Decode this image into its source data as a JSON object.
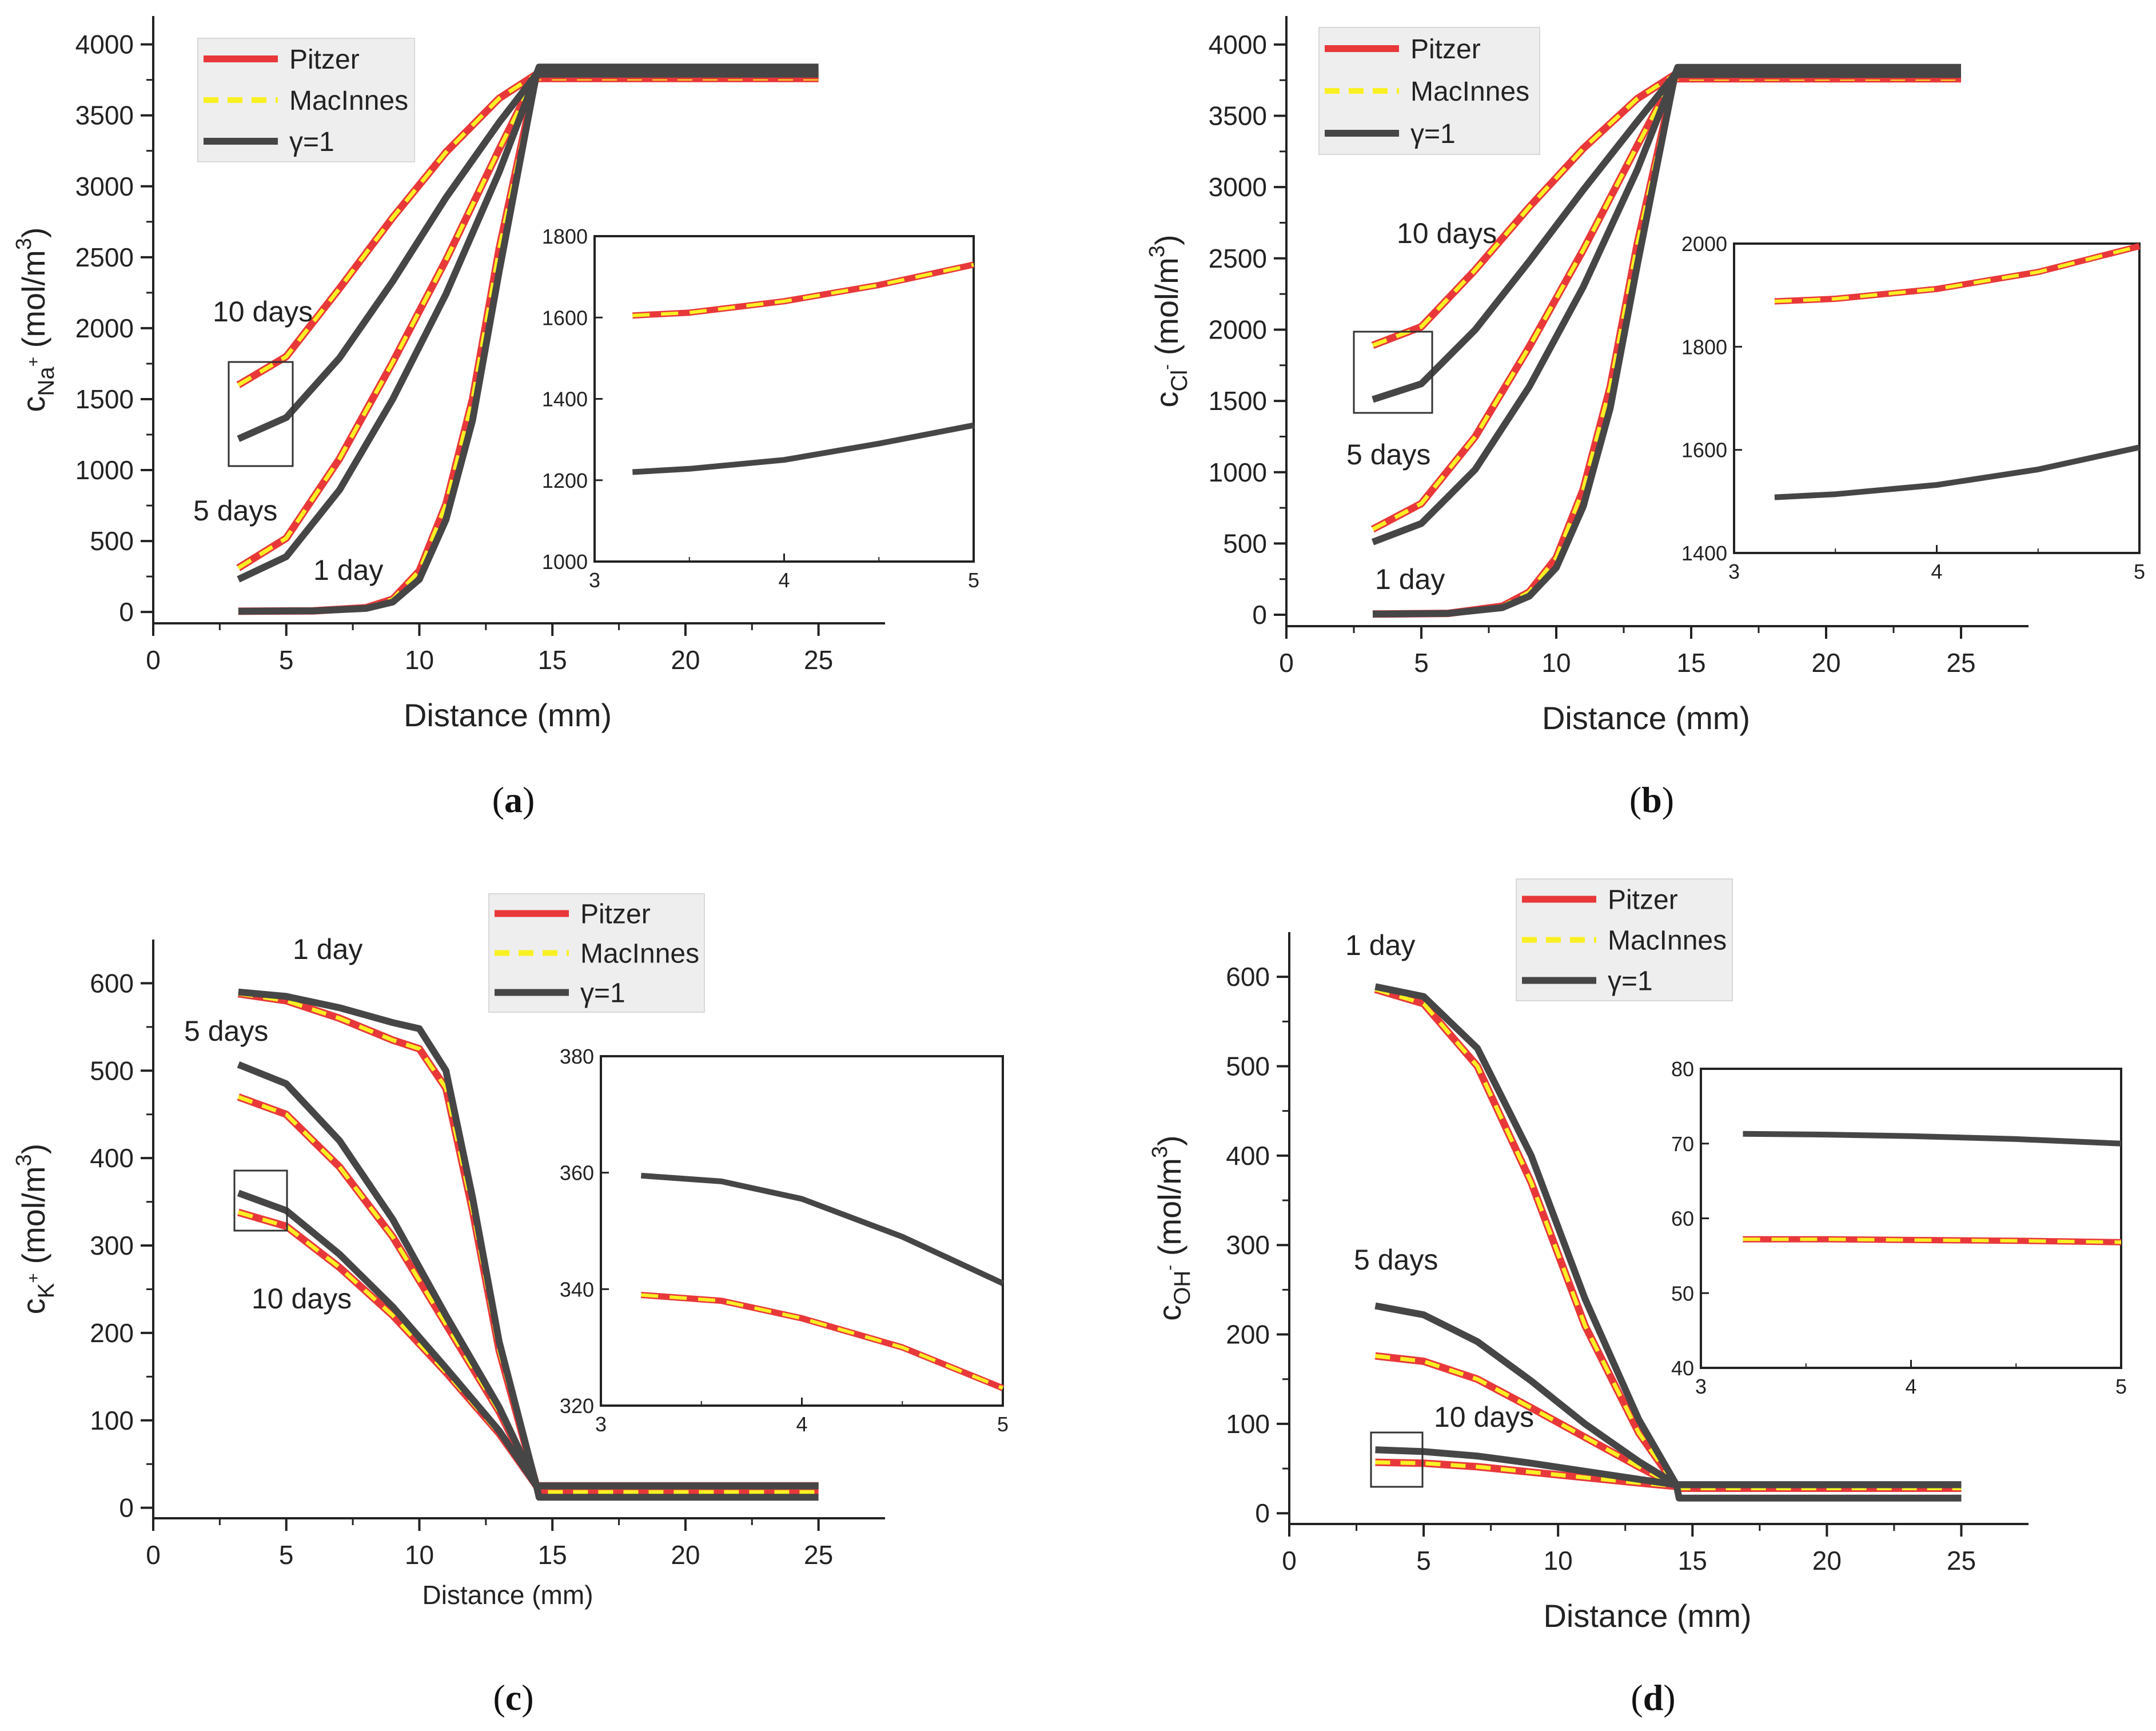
{
  "colors": {
    "pitzer": "#e8383a",
    "macinnes": "#f9f023",
    "gamma1": "#464646",
    "axis": "#222222",
    "legend_bg": "#eeeeee"
  },
  "legend": {
    "pitzer": "Pitzer",
    "macinnes": "MacInnes",
    "gamma1": "γ=1"
  },
  "chart_data": [
    {
      "id": "a",
      "type": "line",
      "caption_letter": "a",
      "xlabel": "Distance (mm)",
      "ylabel_main": "c",
      "ylabel_sub": "Na",
      "ylabel_sup_sub": "+",
      "ylabel_units": "(mol/m",
      "ylabel_units_sup": "3",
      "ylabel_close": ")",
      "xlim": [
        0,
        27.5
      ],
      "ylim": [
        -80,
        4200
      ],
      "xticks": [
        0,
        5,
        10,
        15,
        20,
        25
      ],
      "xtick_labels": [
        "0",
        "5",
        "10",
        "15",
        "20",
        "25"
      ],
      "yticks": [
        0,
        500,
        1000,
        1500,
        2000,
        2500,
        3000,
        3500,
        4000
      ],
      "ytick_labels": [
        "0",
        "500",
        "1000",
        "1500",
        "2000",
        "2500",
        "3000",
        "3500",
        "4000"
      ],
      "annotations": [
        "10 days",
        "5 days",
        "1 day"
      ],
      "series": [
        {
          "name": "Pitzer 10 days",
          "model": "pitzer",
          "x": [
            3.2,
            5,
            7,
            9,
            11,
            13,
            14.4,
            14.5,
            25
          ],
          "y": [
            1600,
            1800,
            2280,
            2780,
            3240,
            3620,
            3790,
            3760,
            3760
          ]
        },
        {
          "name": "Pitzer 5 days",
          "model": "pitzer",
          "x": [
            3.2,
            5,
            7,
            9,
            11,
            13,
            14.4,
            14.5,
            25
          ],
          "y": [
            310,
            520,
            1080,
            1760,
            2480,
            3260,
            3790,
            3780,
            3780
          ]
        },
        {
          "name": "Pitzer 1 day",
          "model": "pitzer",
          "x": [
            3.2,
            6,
            8,
            9,
            10,
            11,
            12,
            13,
            14.4,
            14.5,
            25
          ],
          "y": [
            5,
            8,
            30,
            90,
            290,
            760,
            1500,
            2560,
            3790,
            3790,
            3790
          ]
        },
        {
          "name": "γ=1 10 days",
          "model": "gamma1",
          "x": [
            3.2,
            5,
            7,
            9,
            11,
            13,
            14.4,
            14.5,
            25
          ],
          "y": [
            1220,
            1370,
            1790,
            2330,
            2920,
            3450,
            3790,
            3840,
            3840
          ]
        },
        {
          "name": "γ=1 5 days",
          "model": "gamma1",
          "x": [
            3.2,
            5,
            7,
            9,
            11,
            13,
            14.4,
            14.5,
            25
          ],
          "y": [
            230,
            390,
            860,
            1500,
            2240,
            3100,
            3790,
            3810,
            3810
          ]
        },
        {
          "name": "γ=1 1 day",
          "model": "gamma1",
          "x": [
            3.2,
            6,
            8,
            9,
            10,
            11,
            12,
            13,
            14.4,
            14.5,
            25
          ],
          "y": [
            5,
            8,
            25,
            70,
            230,
            650,
            1350,
            2400,
            3790,
            3790,
            3790
          ]
        }
      ],
      "inset": {
        "xlim": [
          3,
          5
        ],
        "ylim": [
          1000,
          1800
        ],
        "xticks": [
          3,
          4,
          5
        ],
        "xtick_labels": [
          "3",
          "4",
          "5"
        ],
        "yticks": [
          1000,
          1200,
          1400,
          1600,
          1800
        ],
        "ytick_labels": [
          "1000",
          "1200",
          "1400",
          "1600",
          "1800"
        ],
        "series": [
          {
            "model": "pitzer",
            "x": [
              3.2,
              3.5,
              4,
              4.5,
              5
            ],
            "y": [
              1605,
              1612,
              1640,
              1680,
              1730
            ]
          },
          {
            "model": "gamma1",
            "x": [
              3.2,
              3.5,
              4,
              4.5,
              5
            ],
            "y": [
              1220,
              1228,
              1250,
              1290,
              1335
            ]
          }
        ]
      }
    },
    {
      "id": "b",
      "type": "line",
      "caption_letter": "b",
      "xlabel": "Distance (mm)",
      "ylabel_main": "c",
      "ylabel_sub": "Cl",
      "ylabel_sup_sub": "-",
      "ylabel_units": "(mol/m",
      "ylabel_units_sup": "3",
      "ylabel_close": ")",
      "xlim": [
        0,
        27.5
      ],
      "ylim": [
        -80,
        4200
      ],
      "xticks": [
        0,
        5,
        10,
        15,
        20,
        25
      ],
      "xtick_labels": [
        "0",
        "5",
        "10",
        "15",
        "20",
        "25"
      ],
      "yticks": [
        0,
        500,
        1000,
        1500,
        2000,
        2500,
        3000,
        3500,
        4000
      ],
      "ytick_labels": [
        "0",
        "500",
        "1000",
        "1500",
        "2000",
        "2500",
        "3000",
        "3500",
        "4000"
      ],
      "annotations": [
        "10 days",
        "5 days",
        "1 day"
      ],
      "series": [
        {
          "name": "Pitzer 10 days",
          "model": "pitzer",
          "x": [
            3.2,
            5,
            7,
            9,
            11,
            13,
            14.4,
            14.5,
            25
          ],
          "y": [
            1890,
            2020,
            2420,
            2860,
            3270,
            3620,
            3790,
            3760,
            3760
          ]
        },
        {
          "name": "Pitzer 5 days",
          "model": "pitzer",
          "x": [
            3.2,
            5,
            7,
            9,
            11,
            13,
            14.4,
            14.5,
            25
          ],
          "y": [
            600,
            780,
            1250,
            1880,
            2560,
            3290,
            3790,
            3780,
            3780
          ]
        },
        {
          "name": "Pitzer 1 day",
          "model": "pitzer",
          "x": [
            3.2,
            6,
            8,
            9,
            10,
            11,
            12,
            13,
            14.4,
            14.5,
            25
          ],
          "y": [
            5,
            10,
            60,
            160,
            400,
            880,
            1600,
            2600,
            3790,
            3790,
            3790
          ]
        },
        {
          "name": "γ=1 10 days",
          "model": "gamma1",
          "x": [
            3.2,
            5,
            7,
            9,
            11,
            13,
            14.4,
            14.5,
            25
          ],
          "y": [
            1510,
            1620,
            2000,
            2480,
            2980,
            3460,
            3790,
            3840,
            3840
          ]
        },
        {
          "name": "γ=1 5 days",
          "model": "gamma1",
          "x": [
            3.2,
            5,
            7,
            9,
            11,
            13,
            14.4,
            14.5,
            25
          ],
          "y": [
            510,
            640,
            1020,
            1600,
            2300,
            3120,
            3790,
            3810,
            3810
          ]
        },
        {
          "name": "γ=1 1 day",
          "model": "gamma1",
          "x": [
            3.2,
            6,
            8,
            9,
            10,
            11,
            12,
            13,
            14.4,
            14.5,
            25
          ],
          "y": [
            5,
            10,
            50,
            130,
            330,
            760,
            1450,
            2450,
            3790,
            3790,
            3790
          ]
        }
      ],
      "inset": {
        "xlim": [
          3,
          5
        ],
        "ylim": [
          1400,
          2000
        ],
        "xticks": [
          3,
          4,
          5
        ],
        "xtick_labels": [
          "3",
          "4",
          "5"
        ],
        "yticks": [
          1400,
          1600,
          1800,
          2000
        ],
        "ytick_labels": [
          "1400",
          "1600",
          "1800",
          "2000"
        ],
        "series": [
          {
            "model": "pitzer",
            "x": [
              3.2,
              3.5,
              4,
              4.5,
              5
            ],
            "y": [
              1888,
              1893,
              1912,
              1945,
              1995
            ]
          },
          {
            "model": "gamma1",
            "x": [
              3.2,
              3.5,
              4,
              4.5,
              5
            ],
            "y": [
              1508,
              1514,
              1532,
              1562,
              1605
            ]
          }
        ]
      }
    },
    {
      "id": "c",
      "type": "line",
      "caption_letter": "c",
      "xlabel": "Distance (mm)",
      "ylabel_main": "c",
      "ylabel_sub": "K",
      "ylabel_sup_sub": "+",
      "ylabel_units": "(mol/m",
      "ylabel_units_sup": "3",
      "ylabel_close": ")",
      "xlim": [
        0,
        27.5
      ],
      "ylim": [
        -12,
        650
      ],
      "xticks": [
        0,
        5,
        10,
        15,
        20,
        25
      ],
      "xtick_labels": [
        "0",
        "5",
        "10",
        "15",
        "20",
        "25"
      ],
      "yticks": [
        0,
        100,
        200,
        300,
        400,
        500,
        600
      ],
      "ytick_labels": [
        "0",
        "100",
        "200",
        "300",
        "400",
        "500",
        "600"
      ],
      "annotations": [
        "1 day",
        "5 days",
        "10 days"
      ],
      "series": [
        {
          "name": "Pitzer 1 day",
          "model": "pitzer",
          "x": [
            3.2,
            5,
            7,
            9,
            10,
            11,
            12,
            13,
            14.4,
            14.5,
            25
          ],
          "y": [
            588,
            580,
            560,
            535,
            525,
            480,
            340,
            180,
            25,
            25,
            25
          ]
        },
        {
          "name": "Pitzer 5 days",
          "model": "pitzer",
          "x": [
            3.2,
            5,
            7,
            9,
            11,
            13,
            14.4,
            14.5,
            25
          ],
          "y": [
            470,
            450,
            390,
            310,
            210,
            110,
            25,
            25,
            25
          ]
        },
        {
          "name": "Pitzer 10 days",
          "model": "pitzer",
          "x": [
            3.2,
            5,
            7,
            9,
            11,
            13,
            14.4,
            14.5,
            25
          ],
          "y": [
            338,
            322,
            275,
            220,
            155,
            85,
            25,
            18,
            18
          ]
        },
        {
          "name": "γ=1 1 day",
          "model": "gamma1",
          "x": [
            3.2,
            5,
            7,
            9,
            10,
            11,
            12,
            13,
            14.4,
            14.5,
            25
          ],
          "y": [
            590,
            585,
            572,
            555,
            548,
            500,
            355,
            190,
            25,
            25,
            25
          ]
        },
        {
          "name": "γ=1 5 days",
          "model": "gamma1",
          "x": [
            3.2,
            5,
            7,
            9,
            11,
            13,
            14.4,
            14.5,
            25
          ],
          "y": [
            507,
            485,
            420,
            330,
            220,
            115,
            25,
            25,
            25
          ]
        },
        {
          "name": "γ=1 10 days",
          "model": "gamma1",
          "x": [
            3.2,
            5,
            7,
            9,
            11,
            13,
            14.4,
            14.5,
            25
          ],
          "y": [
            360,
            340,
            290,
            230,
            160,
            88,
            25,
            12,
            12
          ]
        }
      ],
      "inset": {
        "xlim": [
          3,
          5
        ],
        "ylim": [
          320,
          380
        ],
        "xticks": [
          3,
          4,
          5
        ],
        "xtick_labels": [
          "3",
          "4",
          "5"
        ],
        "yticks": [
          320,
          340,
          360,
          380
        ],
        "ytick_labels": [
          "320",
          "340",
          "360",
          "380"
        ],
        "series": [
          {
            "model": "pitzer",
            "x": [
              3.2,
              3.6,
              4,
              4.5,
              5
            ],
            "y": [
              339,
              338,
              335,
              330,
              323
            ]
          },
          {
            "model": "gamma1",
            "x": [
              3.2,
              3.6,
              4,
              4.5,
              5
            ],
            "y": [
              359.5,
              358.5,
              355.5,
              349,
              341
            ]
          }
        ]
      }
    },
    {
      "id": "d",
      "type": "line",
      "caption_letter": "d",
      "xlabel": "Distance (mm)",
      "ylabel_main": "c",
      "ylabel_sub": "OH",
      "ylabel_sup_sub": "-",
      "ylabel_units": "(mol/m",
      "ylabel_units_sup": "3",
      "ylabel_close": ")",
      "xlim": [
        0,
        27.5
      ],
      "ylim": [
        -12,
        650
      ],
      "xticks": [
        0,
        5,
        10,
        15,
        20,
        25
      ],
      "xtick_labels": [
        "0",
        "5",
        "10",
        "15",
        "20",
        "25"
      ],
      "yticks": [
        0,
        100,
        200,
        300,
        400,
        500,
        600
      ],
      "ytick_labels": [
        "0",
        "100",
        "200",
        "300",
        "400",
        "500",
        "600"
      ],
      "annotations": [
        "1 day",
        "5 days",
        "10 days"
      ],
      "series": [
        {
          "name": "Pitzer 1 day",
          "model": "pitzer",
          "x": [
            3.2,
            5,
            7,
            9,
            11,
            13,
            14.4,
            14.5,
            25
          ],
          "y": [
            586,
            570,
            500,
            370,
            210,
            90,
            30,
            30,
            30
          ]
        },
        {
          "name": "Pitzer 5 days",
          "model": "pitzer",
          "x": [
            3.2,
            5,
            7,
            9,
            11,
            13,
            14.4,
            14.5,
            25
          ],
          "y": [
            176,
            170,
            150,
            118,
            85,
            52,
            30,
            30,
            30
          ]
        },
        {
          "name": "Pitzer 10 days",
          "model": "pitzer",
          "x": [
            3.2,
            5,
            7,
            9,
            11,
            13,
            14.4,
            14.5,
            25
          ],
          "y": [
            57,
            56,
            52,
            46,
            40,
            34,
            30,
            28,
            28
          ]
        },
        {
          "name": "γ=1 1 day",
          "model": "gamma1",
          "x": [
            3.2,
            5,
            7,
            9,
            11,
            13,
            14.4,
            14.5,
            25
          ],
          "y": [
            589,
            578,
            520,
            400,
            240,
            105,
            32,
            32,
            32
          ]
        },
        {
          "name": "γ=1 5 days",
          "model": "gamma1",
          "x": [
            3.2,
            5,
            7,
            9,
            11,
            13,
            14.4,
            14.5,
            25
          ],
          "y": [
            232,
            222,
            192,
            148,
            100,
            58,
            32,
            32,
            32
          ]
        },
        {
          "name": "γ=1 10 days",
          "model": "gamma1",
          "x": [
            3.2,
            5,
            7,
            9,
            11,
            13,
            14.4,
            14.5,
            25
          ],
          "y": [
            71,
            69,
            64,
            56,
            47,
            38,
            32,
            17,
            17
          ]
        }
      ],
      "inset": {
        "xlim": [
          3,
          5
        ],
        "ylim": [
          40,
          80
        ],
        "xticks": [
          3,
          4,
          5
        ],
        "xtick_labels": [
          "3",
          "4",
          "5"
        ],
        "yticks": [
          40,
          50,
          60,
          70,
          80
        ],
        "ytick_labels": [
          "40",
          "50",
          "60",
          "70",
          "80"
        ],
        "series": [
          {
            "model": "pitzer",
            "x": [
              3.2,
              3.6,
              4,
              4.5,
              5
            ],
            "y": [
              57.2,
              57.2,
              57.1,
              57,
              56.8
            ]
          },
          {
            "model": "gamma1",
            "x": [
              3.2,
              3.6,
              4,
              4.5,
              5
            ],
            "y": [
              71.3,
              71.2,
              71,
              70.6,
              70
            ]
          }
        ]
      }
    }
  ]
}
